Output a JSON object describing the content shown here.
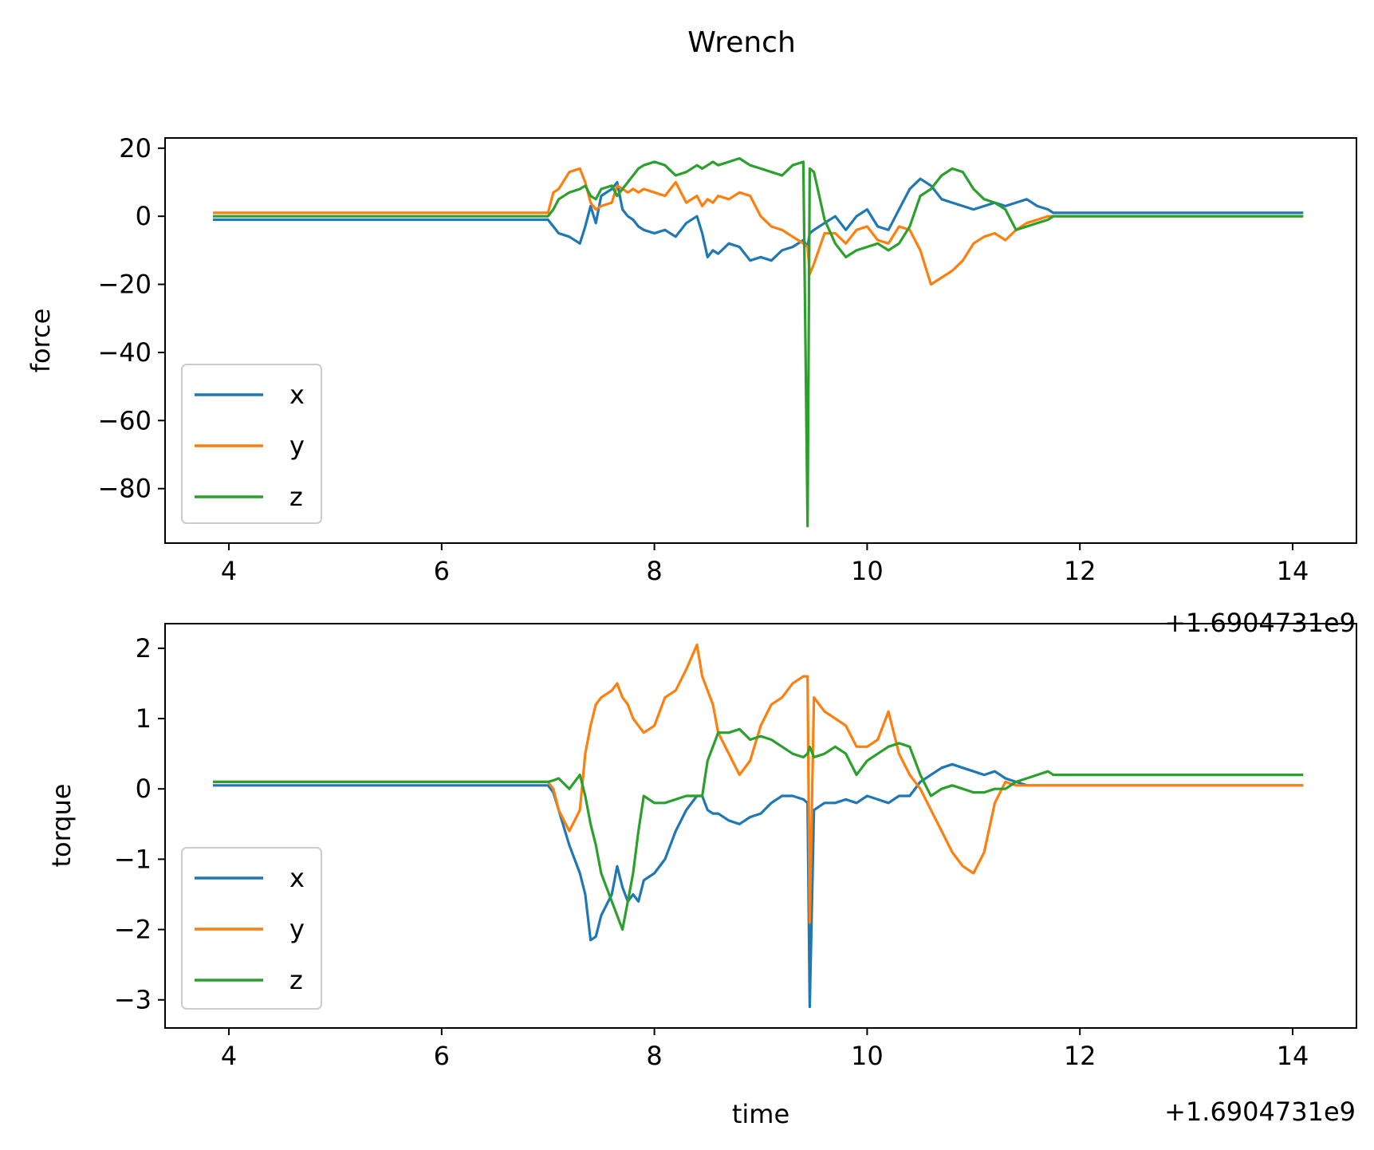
{
  "figure": {
    "suptitle": "Wrench"
  },
  "chart_data": [
    {
      "type": "line",
      "title": "",
      "xlabel": "",
      "ylabel": "force",
      "x_offset_label": "+1.6904731e9",
      "xlim": [
        3.4,
        14.6
      ],
      "ylim": [
        -96,
        23
      ],
      "xticks": [
        4,
        6,
        8,
        10,
        12,
        14
      ],
      "yticks": [
        20,
        0,
        -20,
        -40,
        -60,
        -80
      ],
      "grid": false,
      "legend": "lower-left",
      "series": [
        {
          "name": "x",
          "color": "#1f77b4",
          "x": [
            3.85,
            4.5,
            5.5,
            6.5,
            7.0,
            7.05,
            7.1,
            7.2,
            7.3,
            7.35,
            7.4,
            7.45,
            7.5,
            7.6,
            7.65,
            7.7,
            7.75,
            7.8,
            7.85,
            7.9,
            8.0,
            8.1,
            8.2,
            8.3,
            8.4,
            8.45,
            8.5,
            8.55,
            8.6,
            8.7,
            8.8,
            8.9,
            9.0,
            9.1,
            9.2,
            9.3,
            9.4,
            9.44,
            9.46,
            9.5,
            9.6,
            9.7,
            9.8,
            9.9,
            10.0,
            10.1,
            10.2,
            10.3,
            10.4,
            10.5,
            10.6,
            10.7,
            10.8,
            10.9,
            11.0,
            11.1,
            11.2,
            11.3,
            11.4,
            11.5,
            11.6,
            11.7,
            11.75,
            12.0,
            13.0,
            14.1
          ],
          "y": [
            -1,
            -1,
            -1,
            -1,
            -1,
            -3,
            -5,
            -6,
            -8,
            -3,
            3,
            -2,
            6,
            8,
            10,
            2,
            0,
            -1,
            -3,
            -4,
            -5,
            -4,
            -6,
            -2,
            0,
            -5,
            -12,
            -10,
            -11,
            -8,
            -9,
            -13,
            -12,
            -13,
            -10,
            -9,
            -7,
            -9,
            -5,
            -4,
            -2,
            0,
            -4,
            0,
            2,
            -3,
            -4,
            2,
            8,
            11,
            9,
            5,
            4,
            3,
            2,
            3,
            4,
            3,
            4,
            5,
            3,
            2,
            1,
            1,
            1,
            1
          ]
        },
        {
          "name": "y",
          "color": "#ff7f0e",
          "x": [
            3.85,
            4.5,
            5.5,
            6.5,
            7.0,
            7.05,
            7.1,
            7.2,
            7.3,
            7.35,
            7.4,
            7.45,
            7.5,
            7.6,
            7.65,
            7.7,
            7.75,
            7.8,
            7.85,
            7.9,
            8.0,
            8.1,
            8.2,
            8.3,
            8.4,
            8.45,
            8.5,
            8.55,
            8.6,
            8.7,
            8.8,
            8.9,
            9.0,
            9.1,
            9.2,
            9.3,
            9.4,
            9.44,
            9.46,
            9.5,
            9.6,
            9.7,
            9.8,
            9.9,
            10.0,
            10.1,
            10.2,
            10.3,
            10.4,
            10.5,
            10.6,
            10.7,
            10.8,
            10.9,
            11.0,
            11.1,
            11.2,
            11.3,
            11.4,
            11.5,
            11.6,
            11.7,
            11.75,
            12.0,
            13.0,
            14.1
          ],
          "y": [
            1,
            1,
            1,
            1,
            1,
            7,
            8,
            13,
            14,
            10,
            4,
            2,
            3,
            4,
            9,
            8,
            7,
            8,
            7,
            8,
            7,
            6,
            10,
            4,
            6,
            3,
            5,
            4,
            6,
            5,
            7,
            6,
            0,
            -3,
            -4,
            -6,
            -8,
            -9,
            -17,
            -14,
            -5,
            -5,
            -8,
            -4,
            -3,
            -7,
            -8,
            -3,
            -4,
            -10,
            -20,
            -18,
            -16,
            -13,
            -8,
            -6,
            -5,
            -7,
            -4,
            -2,
            -1,
            0,
            0,
            0,
            0,
            0
          ]
        },
        {
          "name": "z",
          "color": "#2ca02c",
          "x": [
            3.85,
            4.5,
            5.5,
            6.5,
            7.0,
            7.05,
            7.1,
            7.2,
            7.3,
            7.35,
            7.4,
            7.45,
            7.5,
            7.6,
            7.65,
            7.7,
            7.75,
            7.8,
            7.85,
            7.9,
            8.0,
            8.1,
            8.2,
            8.3,
            8.4,
            8.45,
            8.5,
            8.55,
            8.6,
            8.7,
            8.8,
            8.9,
            9.0,
            9.1,
            9.2,
            9.3,
            9.4,
            9.44,
            9.46,
            9.5,
            9.6,
            9.7,
            9.8,
            9.9,
            10.0,
            10.1,
            10.2,
            10.3,
            10.4,
            10.5,
            10.6,
            10.7,
            10.8,
            10.9,
            11.0,
            11.1,
            11.2,
            11.3,
            11.4,
            11.5,
            11.6,
            11.7,
            11.75,
            12.0,
            13.0,
            14.1
          ],
          "y": [
            0,
            0,
            0,
            0,
            0,
            2,
            5,
            7,
            8,
            9,
            6,
            5,
            8,
            9,
            6,
            8,
            10,
            12,
            14,
            15,
            16,
            15,
            12,
            13,
            15,
            14,
            15,
            16,
            15,
            16,
            17,
            15,
            14,
            13,
            12,
            15,
            16,
            -91,
            14,
            13,
            -1,
            -8,
            -12,
            -10,
            -9,
            -8,
            -10,
            -8,
            -3,
            6,
            8,
            12,
            14,
            13,
            8,
            5,
            4,
            2,
            -4,
            -3,
            -2,
            -1,
            0,
            0,
            0,
            0
          ]
        }
      ]
    },
    {
      "type": "line",
      "title": "",
      "xlabel": "time",
      "ylabel": "torque",
      "x_offset_label": "+1.6904731e9",
      "xlim": [
        3.4,
        14.6
      ],
      "ylim": [
        -3.4,
        2.35
      ],
      "xticks": [
        4,
        6,
        8,
        10,
        12,
        14
      ],
      "yticks": [
        2,
        1,
        0,
        -1,
        -2,
        -3
      ],
      "grid": false,
      "legend": "lower-left",
      "series": [
        {
          "name": "x",
          "color": "#1f77b4",
          "x": [
            3.85,
            4.5,
            5.5,
            6.5,
            7.0,
            7.05,
            7.1,
            7.2,
            7.3,
            7.35,
            7.4,
            7.45,
            7.5,
            7.6,
            7.65,
            7.7,
            7.75,
            7.8,
            7.85,
            7.9,
            8.0,
            8.1,
            8.2,
            8.3,
            8.4,
            8.45,
            8.5,
            8.55,
            8.6,
            8.7,
            8.8,
            8.9,
            9.0,
            9.1,
            9.2,
            9.3,
            9.4,
            9.44,
            9.46,
            9.5,
            9.6,
            9.7,
            9.8,
            9.9,
            10.0,
            10.1,
            10.2,
            10.3,
            10.4,
            10.5,
            10.6,
            10.7,
            10.8,
            10.9,
            11.0,
            11.1,
            11.2,
            11.3,
            11.4,
            11.5,
            11.6,
            11.7,
            11.75,
            12.0,
            13.0,
            14.1
          ],
          "y": [
            0.05,
            0.05,
            0.05,
            0.05,
            0.05,
            -0.05,
            -0.3,
            -0.8,
            -1.2,
            -1.5,
            -2.15,
            -2.1,
            -1.8,
            -1.5,
            -1.1,
            -1.4,
            -1.6,
            -1.5,
            -1.6,
            -1.3,
            -1.2,
            -1.0,
            -0.6,
            -0.3,
            -0.1,
            -0.1,
            -0.3,
            -0.35,
            -0.35,
            -0.45,
            -0.5,
            -0.4,
            -0.35,
            -0.2,
            -0.1,
            -0.1,
            -0.15,
            -0.2,
            -3.1,
            -0.3,
            -0.2,
            -0.2,
            -0.15,
            -0.2,
            -0.1,
            -0.15,
            -0.2,
            -0.1,
            -0.1,
            0.1,
            0.2,
            0.3,
            0.35,
            0.3,
            0.25,
            0.2,
            0.25,
            0.15,
            0.1,
            0.05,
            0.05,
            0.05,
            0.05,
            0.05,
            0.05,
            0.05
          ]
        },
        {
          "name": "y",
          "color": "#ff7f0e",
          "x": [
            3.85,
            4.5,
            5.5,
            6.5,
            7.0,
            7.05,
            7.1,
            7.2,
            7.3,
            7.35,
            7.4,
            7.45,
            7.5,
            7.6,
            7.65,
            7.7,
            7.75,
            7.8,
            7.85,
            7.9,
            8.0,
            8.1,
            8.2,
            8.3,
            8.4,
            8.45,
            8.5,
            8.55,
            8.6,
            8.7,
            8.8,
            8.9,
            9.0,
            9.1,
            9.2,
            9.3,
            9.4,
            9.44,
            9.46,
            9.5,
            9.6,
            9.7,
            9.8,
            9.9,
            10.0,
            10.1,
            10.2,
            10.3,
            10.4,
            10.5,
            10.6,
            10.7,
            10.8,
            10.9,
            11.0,
            11.1,
            11.2,
            11.3,
            11.4,
            11.5,
            11.6,
            11.7,
            11.75,
            12.0,
            13.0,
            14.1
          ],
          "y": [
            0.1,
            0.1,
            0.1,
            0.1,
            0.1,
            0.0,
            -0.3,
            -0.6,
            -0.3,
            0.5,
            0.9,
            1.2,
            1.3,
            1.4,
            1.5,
            1.3,
            1.2,
            1.0,
            0.9,
            0.8,
            0.9,
            1.3,
            1.4,
            1.7,
            2.05,
            1.6,
            1.4,
            1.2,
            0.8,
            0.5,
            0.2,
            0.4,
            0.9,
            1.2,
            1.3,
            1.5,
            1.6,
            1.6,
            -1.9,
            1.3,
            1.1,
            1.0,
            0.9,
            0.6,
            0.6,
            0.7,
            1.1,
            0.5,
            0.2,
            0.0,
            -0.3,
            -0.6,
            -0.9,
            -1.1,
            -1.2,
            -0.9,
            -0.2,
            0.1,
            0.05,
            0.05,
            0.05,
            0.05,
            0.05,
            0.05,
            0.05,
            0.05
          ]
        },
        {
          "name": "z",
          "color": "#2ca02c",
          "x": [
            3.85,
            4.5,
            5.5,
            6.5,
            7.0,
            7.05,
            7.1,
            7.2,
            7.3,
            7.35,
            7.4,
            7.45,
            7.5,
            7.6,
            7.65,
            7.7,
            7.75,
            7.8,
            7.85,
            7.9,
            8.0,
            8.1,
            8.2,
            8.3,
            8.4,
            8.45,
            8.5,
            8.55,
            8.6,
            8.7,
            8.8,
            8.9,
            9.0,
            9.1,
            9.2,
            9.3,
            9.4,
            9.44,
            9.46,
            9.5,
            9.6,
            9.7,
            9.8,
            9.9,
            10.0,
            10.1,
            10.2,
            10.3,
            10.4,
            10.5,
            10.6,
            10.7,
            10.8,
            10.9,
            11.0,
            11.1,
            11.2,
            11.3,
            11.4,
            11.5,
            11.6,
            11.7,
            11.75,
            12.0,
            13.0,
            14.1
          ],
          "y": [
            0.1,
            0.1,
            0.1,
            0.1,
            0.1,
            0.12,
            0.15,
            0.0,
            0.2,
            -0.1,
            -0.5,
            -0.8,
            -1.2,
            -1.6,
            -1.8,
            -2.0,
            -1.6,
            -1.2,
            -0.6,
            -0.1,
            -0.2,
            -0.2,
            -0.15,
            -0.1,
            -0.1,
            -0.1,
            0.4,
            0.6,
            0.8,
            0.8,
            0.85,
            0.7,
            0.75,
            0.7,
            0.6,
            0.5,
            0.45,
            0.5,
            0.6,
            0.45,
            0.5,
            0.6,
            0.5,
            0.2,
            0.4,
            0.5,
            0.6,
            0.65,
            0.6,
            0.2,
            -0.1,
            0.0,
            0.05,
            0.0,
            -0.05,
            -0.05,
            0.0,
            0.0,
            0.1,
            0.15,
            0.2,
            0.25,
            0.2,
            0.2,
            0.2,
            0.2
          ]
        }
      ]
    }
  ]
}
